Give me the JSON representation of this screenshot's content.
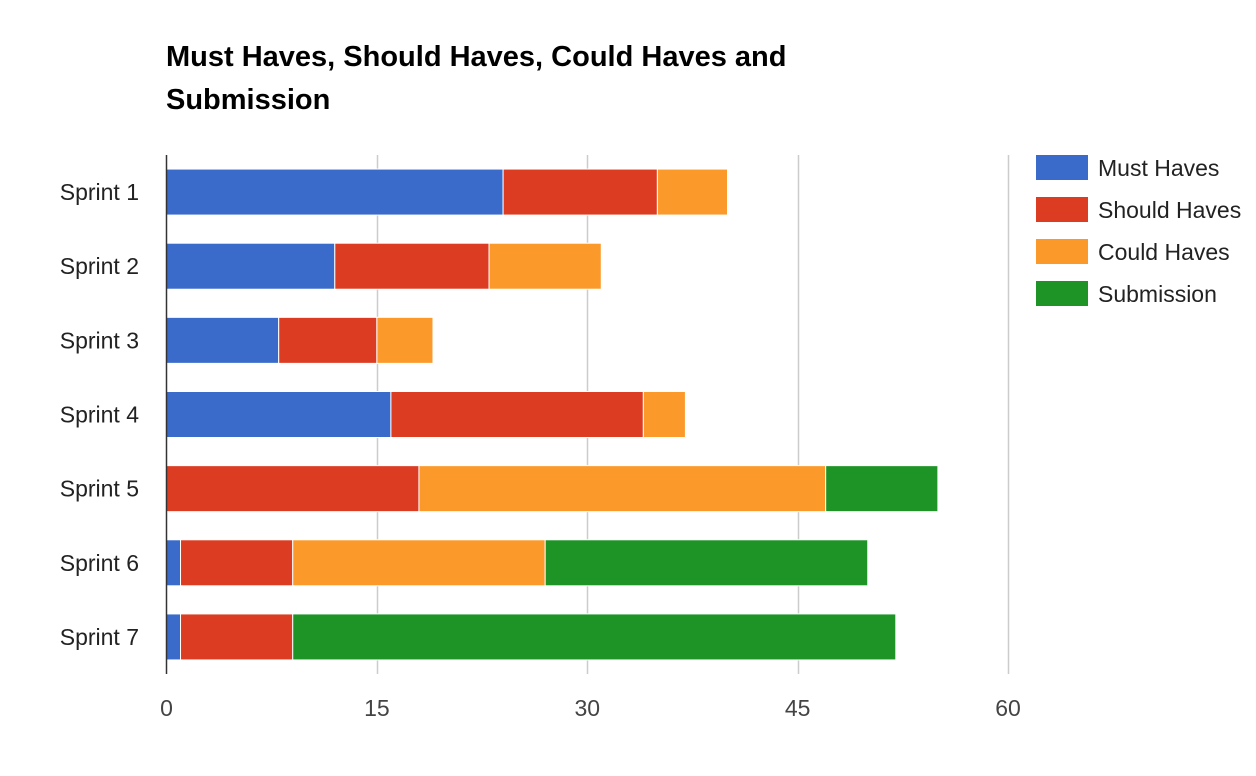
{
  "chart_data": {
    "type": "bar",
    "orientation": "horizontal",
    "stacked": true,
    "title": "Must Haves, Should Haves, Could Haves and Submission",
    "categories": [
      "Sprint 1",
      "Sprint 2",
      "Sprint 3",
      "Sprint 4",
      "Sprint 5",
      "Sprint 6",
      "Sprint 7"
    ],
    "series": [
      {
        "name": "Must Haves",
        "color": "#3a6bcb",
        "values": [
          24,
          12,
          8,
          16,
          0,
          1,
          1
        ]
      },
      {
        "name": "Should Haves",
        "color": "#db3c22",
        "values": [
          11,
          11,
          7,
          18,
          18,
          8,
          8
        ]
      },
      {
        "name": "Could Haves",
        "color": "#fb9a2a",
        "values": [
          5,
          8,
          4,
          3,
          29,
          18,
          0
        ]
      },
      {
        "name": "Submission",
        "color": "#1e9426",
        "values": [
          0,
          0,
          0,
          0,
          8,
          23,
          43
        ]
      }
    ],
    "x_ticks": [
      "0",
      "15",
      "30",
      "45",
      "60"
    ],
    "xlim": [
      0,
      60
    ],
    "grid": true,
    "legend_position": "right"
  }
}
